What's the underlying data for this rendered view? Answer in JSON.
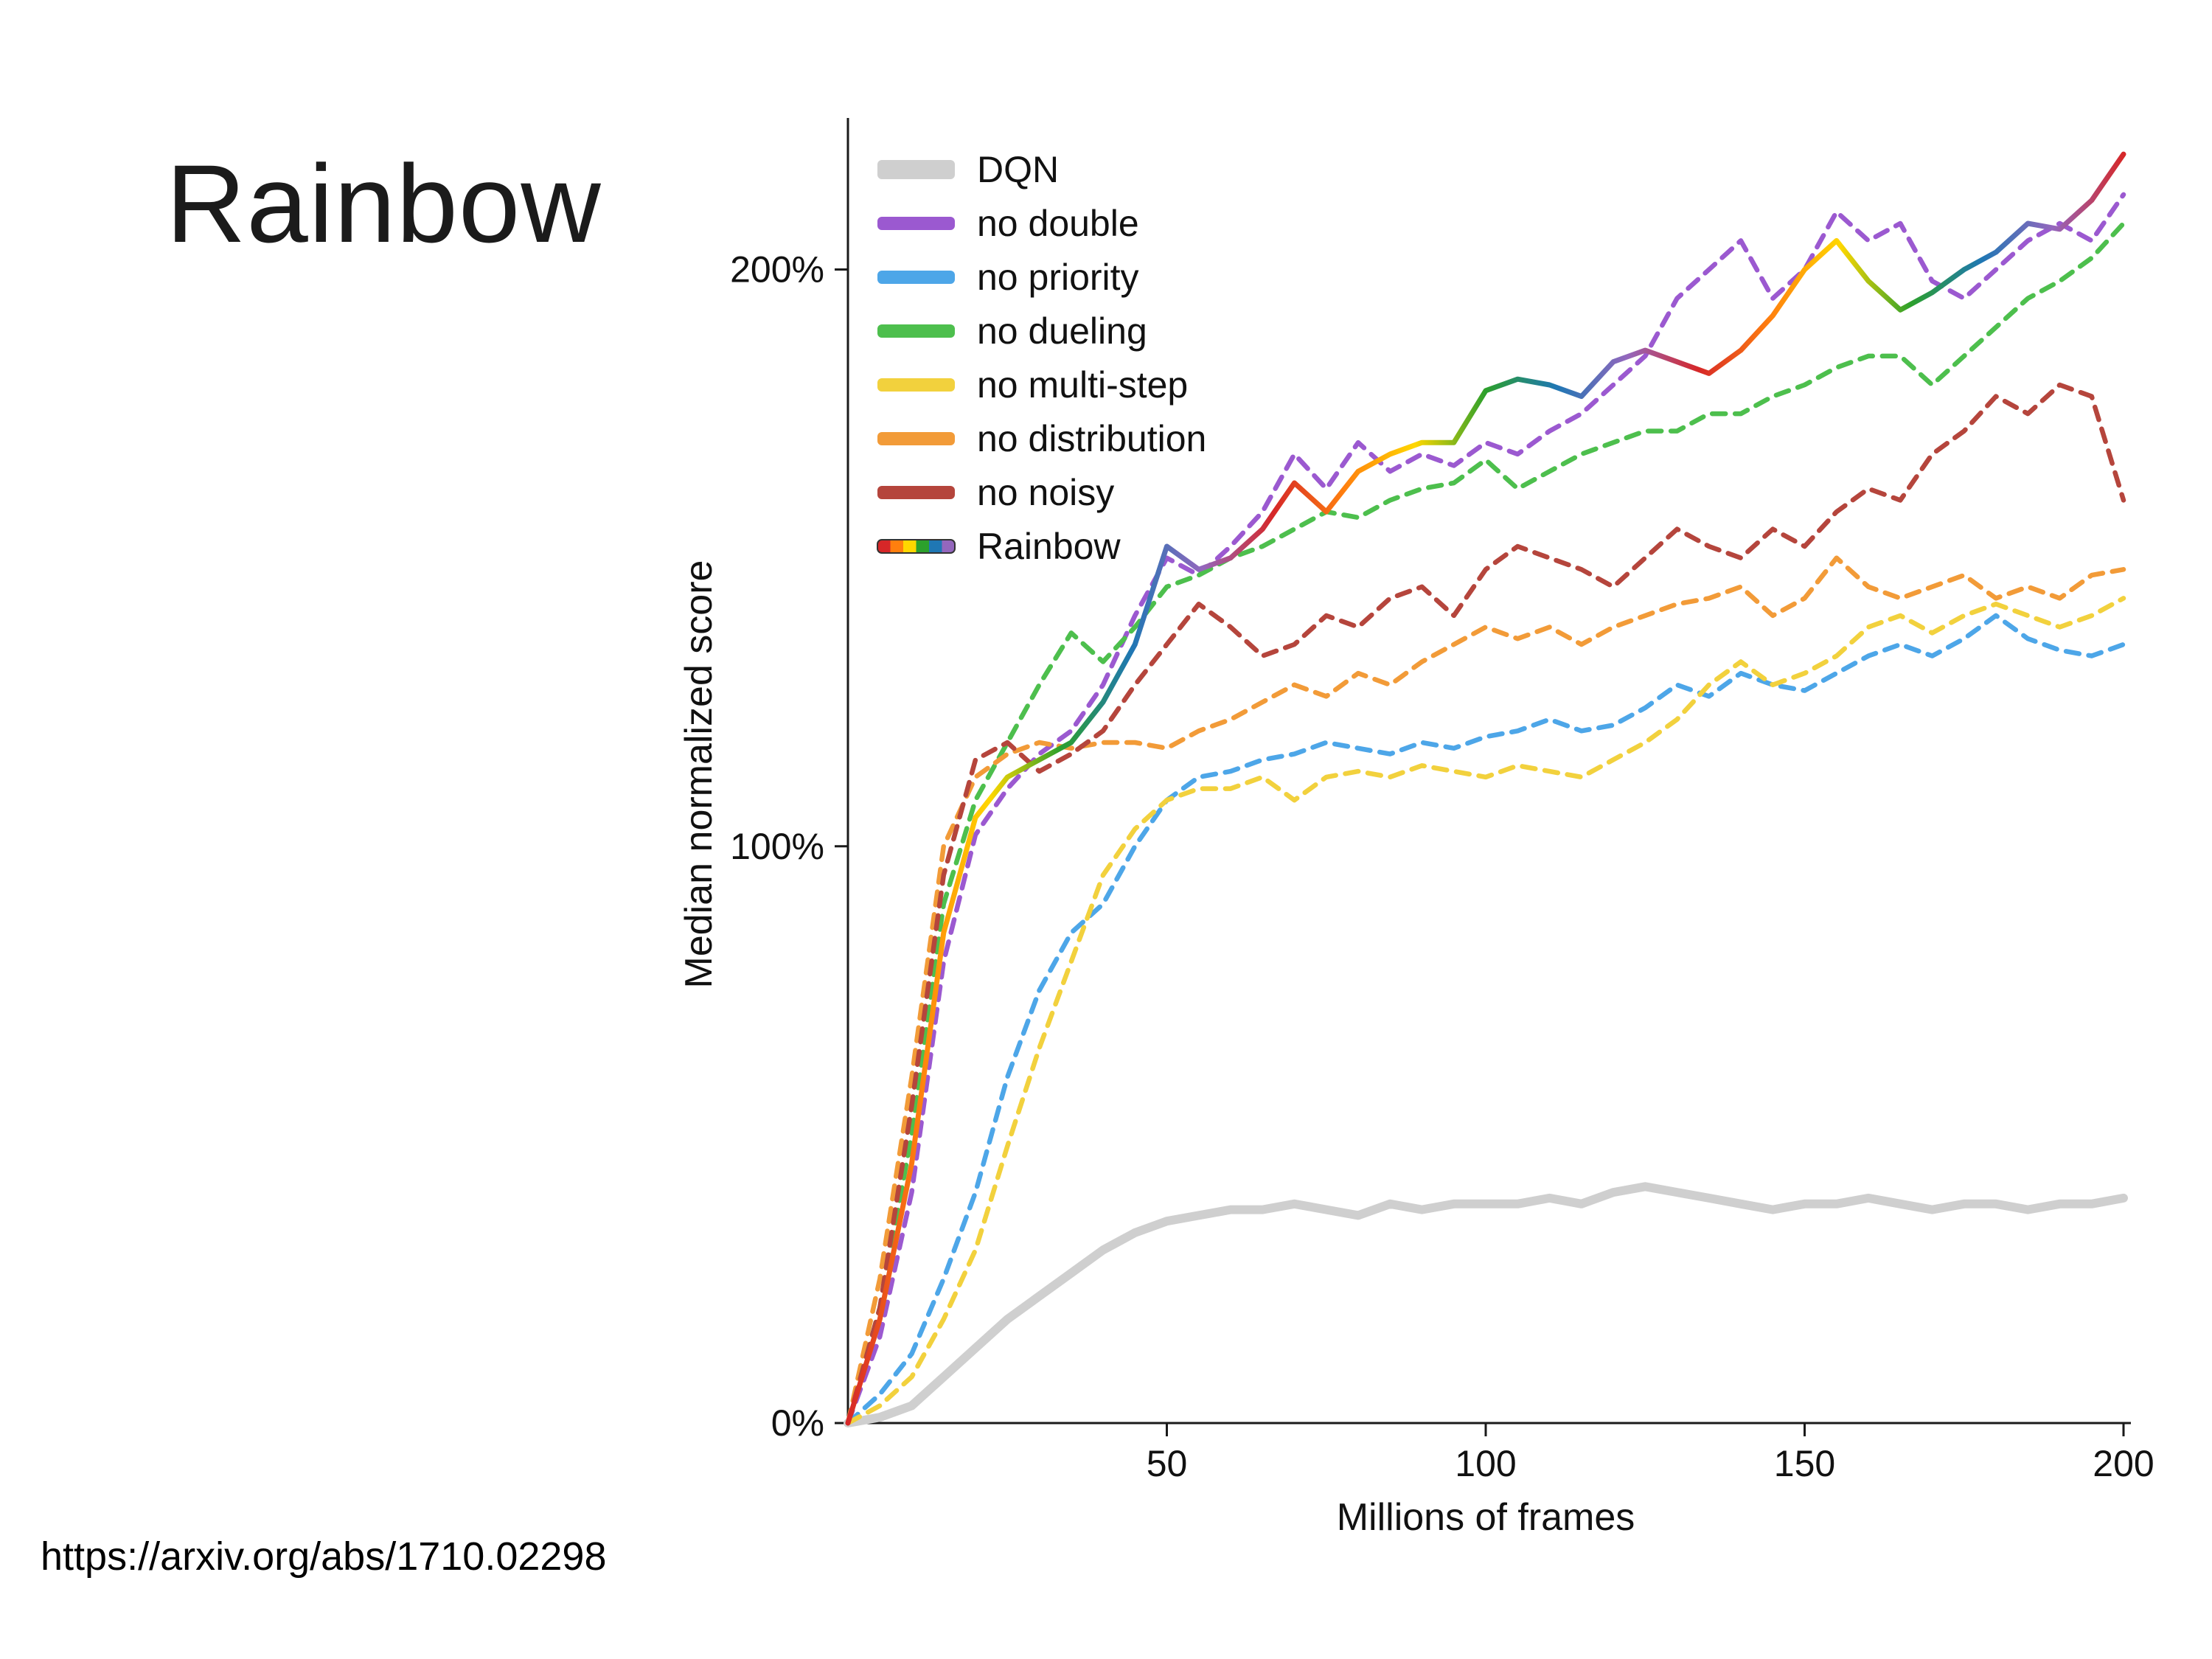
{
  "slide": {
    "title": "Rainbow",
    "source_url": "https://arxiv.org/abs/1710.02298"
  },
  "chart_data": {
    "type": "line",
    "title": "",
    "xlabel": "Millions of frames",
    "ylabel": "Median normalized score",
    "xlim": [
      0,
      200
    ],
    "ylim": [
      0,
      225
    ],
    "xticks": [
      50,
      100,
      150,
      200
    ],
    "yticks": [
      {
        "value": 0,
        "label": "0%"
      },
      {
        "value": 100,
        "label": "100%"
      },
      {
        "value": 200,
        "label": "200%"
      }
    ],
    "grid": false,
    "legend_position": "upper-left-inside",
    "x": [
      0,
      5,
      10,
      15,
      20,
      25,
      30,
      35,
      40,
      45,
      50,
      55,
      60,
      65,
      70,
      75,
      80,
      85,
      90,
      95,
      100,
      105,
      110,
      115,
      120,
      125,
      130,
      135,
      140,
      145,
      150,
      155,
      160,
      165,
      170,
      175,
      180,
      185,
      190,
      195,
      200
    ],
    "series": [
      {
        "name": "DQN",
        "color": "#cfcfcf",
        "style": "solid-thick",
        "values": [
          0,
          1,
          3,
          8,
          13,
          18,
          22,
          26,
          30,
          33,
          35,
          36,
          37,
          37,
          38,
          37,
          36,
          38,
          37,
          38,
          38,
          38,
          39,
          38,
          40,
          41,
          40,
          39,
          38,
          37,
          38,
          38,
          39,
          38,
          37,
          38,
          38,
          37,
          38,
          38,
          39
        ]
      },
      {
        "name": "no double",
        "color": "#9b59d0",
        "style": "dashed",
        "values": [
          0,
          15,
          40,
          80,
          102,
          110,
          116,
          120,
          128,
          140,
          150,
          147,
          152,
          158,
          168,
          162,
          170,
          165,
          168,
          166,
          170,
          168,
          172,
          175,
          180,
          185,
          195,
          200,
          205,
          195,
          200,
          210,
          205,
          208,
          198,
          195,
          200,
          205,
          208,
          205,
          213
        ]
      },
      {
        "name": "no priority",
        "color": "#4da6e8",
        "style": "dashed",
        "values": [
          0,
          5,
          12,
          25,
          40,
          60,
          75,
          85,
          90,
          100,
          108,
          112,
          113,
          115,
          116,
          118,
          117,
          116,
          118,
          117,
          119,
          120,
          122,
          120,
          121,
          124,
          128,
          126,
          130,
          128,
          127,
          130,
          133,
          135,
          133,
          136,
          140,
          136,
          134,
          133,
          135
        ]
      },
      {
        "name": "no dueling",
        "color": "#4dbf4d",
        "style": "dashed",
        "values": [
          0,
          20,
          50,
          90,
          108,
          118,
          128,
          137,
          132,
          138,
          145,
          147,
          150,
          152,
          155,
          158,
          157,
          160,
          162,
          163,
          167,
          162,
          165,
          168,
          170,
          172,
          172,
          175,
          175,
          178,
          180,
          183,
          185,
          185,
          180,
          185,
          190,
          195,
          198,
          202,
          208
        ]
      },
      {
        "name": "no multi-step",
        "color": "#f2d13d",
        "style": "dashed",
        "values": [
          0,
          3,
          8,
          18,
          30,
          48,
          65,
          80,
          95,
          103,
          108,
          110,
          110,
          112,
          108,
          112,
          113,
          112,
          114,
          113,
          112,
          114,
          113,
          112,
          115,
          118,
          122,
          128,
          132,
          128,
          130,
          133,
          138,
          140,
          137,
          140,
          142,
          140,
          138,
          140,
          143
        ]
      },
      {
        "name": "no distribution",
        "color": "#f29b38",
        "style": "dashed",
        "values": [
          0,
          25,
          60,
          100,
          112,
          116,
          118,
          117,
          118,
          118,
          117,
          120,
          122,
          125,
          128,
          126,
          130,
          128,
          132,
          135,
          138,
          136,
          138,
          135,
          138,
          140,
          142,
          143,
          145,
          140,
          143,
          150,
          145,
          143,
          145,
          147,
          143,
          145,
          143,
          147,
          148
        ]
      },
      {
        "name": "no noisy",
        "color": "#b5453c",
        "style": "dashed",
        "values": [
          0,
          20,
          55,
          95,
          115,
          118,
          113,
          116,
          120,
          128,
          135,
          142,
          138,
          133,
          135,
          140,
          138,
          143,
          145,
          140,
          148,
          152,
          150,
          148,
          145,
          150,
          155,
          152,
          150,
          155,
          152,
          158,
          162,
          160,
          168,
          172,
          178,
          175,
          180,
          178,
          160
        ]
      },
      {
        "name": "Rainbow",
        "color": "rainbow",
        "style": "solid",
        "rainbow_colors": [
          "#d62728",
          "#ff7f0e",
          "#ffd700",
          "#2ca02c",
          "#1f77b4",
          "#9467bd"
        ],
        "values": [
          0,
          18,
          45,
          85,
          105,
          112,
          115,
          118,
          125,
          135,
          152,
          148,
          150,
          155,
          163,
          158,
          165,
          168,
          170,
          170,
          179,
          181,
          180,
          178,
          184,
          186,
          184,
          182,
          186,
          192,
          200,
          205,
          198,
          193,
          196,
          200,
          203,
          208,
          207,
          212,
          220
        ]
      }
    ]
  }
}
